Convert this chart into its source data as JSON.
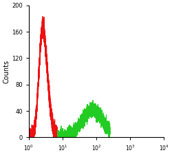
{
  "title": "",
  "xlabel": "",
  "ylabel": "Counts",
  "xlim_log": [
    1.0,
    10000.0
  ],
  "ylim": [
    0,
    200
  ],
  "yticks": [
    0,
    40,
    80,
    120,
    160,
    200
  ],
  "xtick_vals": [
    1.0,
    10.0,
    100.0,
    1000.0,
    10000.0
  ],
  "xtick_labels": [
    "10$^0$",
    "10$^1$",
    "10$^2$",
    "10$^3$",
    "10$^4$"
  ],
  "red_color": "#ee1111",
  "green_color": "#22cc22",
  "background_color": "#ffffff",
  "linewidth": 0.8,
  "red_peak1_log": 0.38,
  "red_peak1_height": 110,
  "red_peak1_sigma": 0.1,
  "red_peak2_log": 0.5,
  "red_peak2_height": 80,
  "red_peak2_sigma": 0.12,
  "green_peak_log": 1.88,
  "green_peak_height": 42,
  "green_peak_sigma": 0.3,
  "n_points": 3000,
  "red_noise_amp": 6,
  "green_noise_amp": 5,
  "red_x_start_log": 0.0,
  "red_x_end_log": 0.85,
  "green_x_start_log": 0.85,
  "green_x_end_log": 2.4
}
